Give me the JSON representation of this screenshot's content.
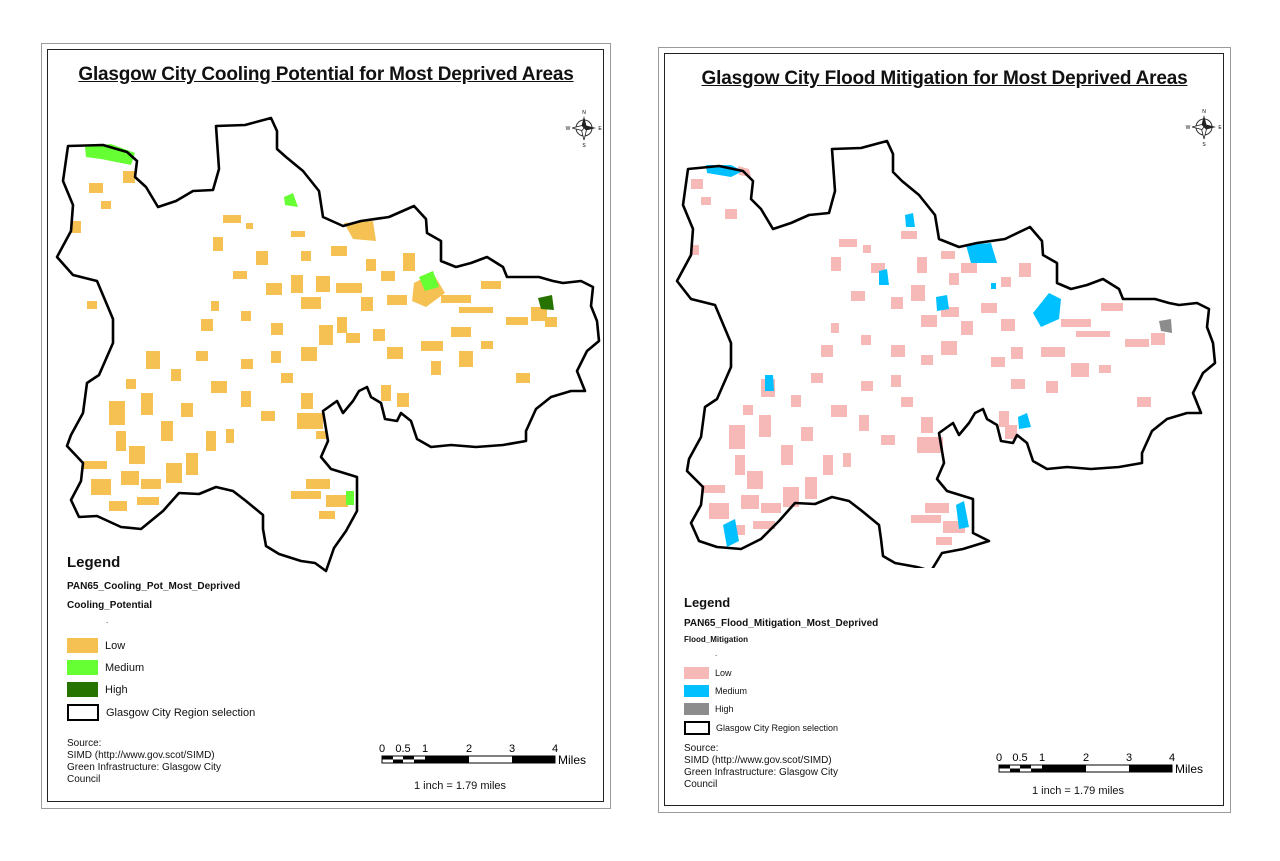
{
  "maps": [
    {
      "title": "Glasgow City Cooling Potential for Most Deprived Areas",
      "legend": {
        "heading": "Legend",
        "layer": "PAN65_Cooling_Pot_Most_Deprived",
        "field": "Cooling_Potential",
        "null_marker": ".",
        "classes": [
          {
            "label": "Low",
            "color": "#f5c152"
          },
          {
            "label": "Medium",
            "color": "#66ff33"
          },
          {
            "label": "High",
            "color": "#267300"
          }
        ],
        "boundary_label": "Glasgow City Region selection"
      },
      "source": {
        "heading": "Source:",
        "lines": [
          "SIMD (http://www.gov.scot/SIMD)",
          "Green Infrastructure: Glasgow City",
          "Council"
        ]
      },
      "scale": {
        "ticks": [
          "0",
          "0.5",
          "1",
          "2",
          "3",
          "4"
        ],
        "unit": "Miles",
        "ratio": "1 inch = 1.79 miles"
      },
      "north_arrow": {
        "n": "N",
        "s": "S",
        "e": "E",
        "w": "W"
      }
    },
    {
      "title": "Glasgow City Flood Mitigation for Most Deprived Areas",
      "legend": {
        "heading": "Legend",
        "layer": "PAN65_Flood_Mitigation_Most_Deprived",
        "field": "Flood_Mitigation",
        "null_marker": ".",
        "classes": [
          {
            "label": "Low",
            "color": "#f7b8b8"
          },
          {
            "label": "Medium",
            "color": "#00c0ff"
          },
          {
            "label": "High",
            "color": "#8c8c8c"
          }
        ],
        "boundary_label": "Glasgow City Region selection"
      },
      "source": {
        "heading": "Source:",
        "lines": [
          "SIMD (http://www.gov.scot/SIMD)",
          "Green Infrastructure: Glasgow City",
          "Council"
        ]
      },
      "scale": {
        "ticks": [
          "0",
          "0.5",
          "1",
          "2",
          "3",
          "4"
        ],
        "unit": "Miles",
        "ratio": "1 inch = 1.79 miles"
      },
      "north_arrow": {
        "n": "N",
        "s": "S",
        "e": "E",
        "w": "W"
      }
    }
  ]
}
